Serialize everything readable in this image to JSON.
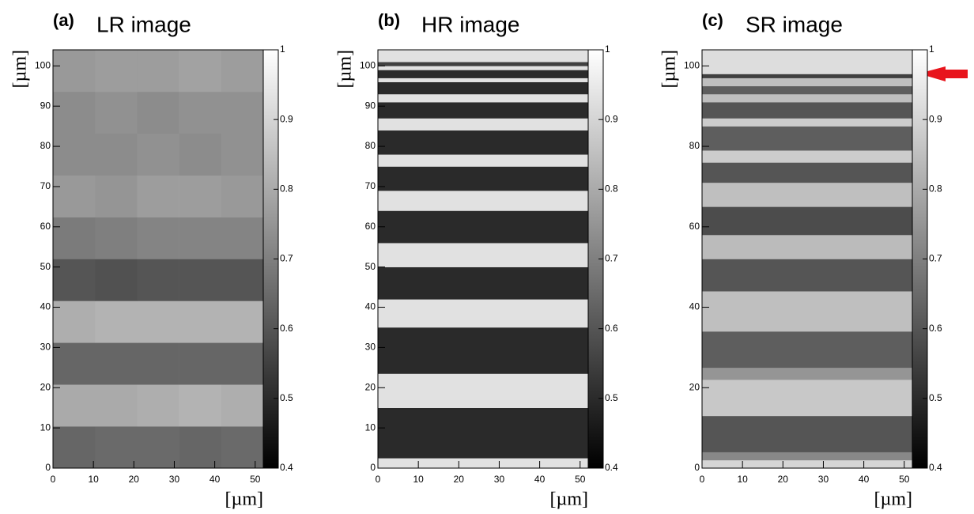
{
  "chart_data": [
    {
      "type": "heatmap",
      "panel_label": "(a)",
      "title": "LR image",
      "xlabel": "[µm]",
      "ylabel": "[µm]",
      "xlim": [
        0,
        52
      ],
      "ylim": [
        0,
        104
      ],
      "xticks": [
        0,
        10,
        20,
        30,
        40,
        50
      ],
      "yticks": [
        0,
        10,
        20,
        30,
        40,
        50,
        60,
        70,
        80,
        90,
        100
      ],
      "clim": [
        0.4,
        1
      ],
      "cticks": [
        0.4,
        0.5,
        0.6,
        0.7,
        0.8,
        0.9,
        1
      ],
      "x_edges": [
        0,
        10.4,
        20.8,
        31.2,
        41.6,
        52
      ],
      "y_edges": [
        0,
        10.4,
        20.8,
        31.2,
        41.6,
        52,
        62.4,
        72.8,
        83.2,
        93.6,
        104
      ],
      "values": [
        [
          0.64,
          0.65,
          0.65,
          0.64,
          0.65
        ],
        [
          0.8,
          0.8,
          0.81,
          0.82,
          0.81
        ],
        [
          0.64,
          0.64,
          0.64,
          0.64,
          0.64
        ],
        [
          0.81,
          0.82,
          0.82,
          0.82,
          0.82
        ],
        [
          0.6,
          0.59,
          0.6,
          0.6,
          0.6
        ],
        [
          0.69,
          0.7,
          0.71,
          0.71,
          0.71
        ],
        [
          0.76,
          0.75,
          0.77,
          0.77,
          0.76
        ],
        [
          0.73,
          0.73,
          0.74,
          0.73,
          0.74
        ],
        [
          0.73,
          0.74,
          0.73,
          0.74,
          0.74
        ],
        [
          0.76,
          0.77,
          0.77,
          0.78,
          0.77
        ]
      ]
    },
    {
      "type": "heatmap",
      "panel_label": "(b)",
      "title": "HR image",
      "xlabel": "[µm]",
      "ylabel": "[µm]",
      "xlim": [
        0,
        52
      ],
      "ylim": [
        0,
        104
      ],
      "xticks": [
        0,
        10,
        20,
        30,
        40,
        50
      ],
      "yticks": [
        0,
        10,
        20,
        30,
        40,
        50,
        60,
        70,
        80,
        90,
        100
      ],
      "clim": [
        0.4,
        1
      ],
      "cticks": [
        0.4,
        0.5,
        0.6,
        0.7,
        0.8,
        0.9,
        1
      ],
      "x_edges": [
        0,
        52
      ],
      "y_edges": [
        0,
        2.5,
        15,
        23.5,
        35,
        42,
        50,
        56,
        64,
        69,
        75,
        78,
        84,
        87,
        91,
        93,
        96,
        97,
        99,
        100,
        101,
        104
      ],
      "values": [
        [
          0.93
        ],
        [
          0.5
        ],
        [
          0.93
        ],
        [
          0.5
        ],
        [
          0.93
        ],
        [
          0.5
        ],
        [
          0.93
        ],
        [
          0.5
        ],
        [
          0.93
        ],
        [
          0.5
        ],
        [
          0.93
        ],
        [
          0.5
        ],
        [
          0.93
        ],
        [
          0.5
        ],
        [
          0.93
        ],
        [
          0.5
        ],
        [
          0.93
        ],
        [
          0.5
        ],
        [
          0.93
        ],
        [
          0.55
        ],
        [
          0.93
        ]
      ]
    },
    {
      "type": "heatmap",
      "panel_label": "(c)",
      "title": "SR image",
      "xlabel": "[µm]",
      "ylabel": "[µm]",
      "xlim": [
        0,
        52
      ],
      "ylim": [
        0,
        104
      ],
      "xticks": [
        0,
        10,
        20,
        30,
        40,
        50
      ],
      "yticks": [
        0,
        20,
        40,
        60,
        80,
        100
      ],
      "clim": [
        0.4,
        1
      ],
      "cticks": [
        0.4,
        0.5,
        0.6,
        0.7,
        0.8,
        0.9,
        1
      ],
      "x_edges": [
        0,
        52
      ],
      "y_edges": [
        0,
        2,
        4,
        13,
        22,
        25,
        34,
        44,
        52,
        58,
        65,
        71,
        76,
        79,
        85,
        87,
        91,
        93,
        95,
        97,
        98,
        104
      ],
      "values": [
        [
          0.9
        ],
        [
          0.72
        ],
        [
          0.6
        ],
        [
          0.87
        ],
        [
          0.75
        ],
        [
          0.62
        ],
        [
          0.85
        ],
        [
          0.6
        ],
        [
          0.84
        ],
        [
          0.58
        ],
        [
          0.85
        ],
        [
          0.6
        ],
        [
          0.88
        ],
        [
          0.62
        ],
        [
          0.88
        ],
        [
          0.6
        ],
        [
          0.85
        ],
        [
          0.62
        ],
        [
          0.85
        ],
        [
          0.55
        ],
        [
          0.92
        ]
      ]
    }
  ]
}
